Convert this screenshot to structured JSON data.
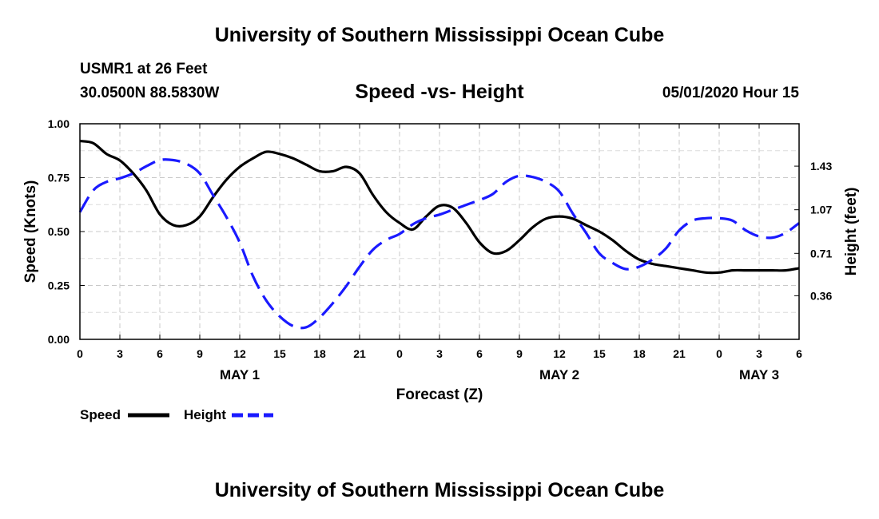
{
  "header": {
    "title": "University of Southern Mississippi Ocean Cube",
    "station": "USMR1 at 26 Feet",
    "coords": "30.0500N 88.5830W",
    "subtitle": "Speed -vs- Height",
    "timestamp": "05/01/2020 Hour 15"
  },
  "footer": {
    "title": "University of Southern Mississippi Ocean Cube"
  },
  "chart_data": {
    "type": "line",
    "title": "Speed -vs- Height",
    "xlabel": "Forecast (Z)",
    "ylabel": "Speed (Knots)",
    "y2label": "Height (feet)",
    "x_range": [
      0,
      54
    ],
    "ylim": [
      0,
      1
    ],
    "y2lim": [
      0.0,
      1.78
    ],
    "x_ticks": [
      0,
      3,
      6,
      9,
      12,
      15,
      18,
      21,
      24,
      27,
      30,
      33,
      36,
      39,
      42,
      45,
      48,
      51,
      54
    ],
    "x_tick_labels": [
      "0",
      "3",
      "6",
      "9",
      "12",
      "15",
      "18",
      "21",
      "0",
      "3",
      "6",
      "9",
      "12",
      "15",
      "18",
      "21",
      "0",
      "3",
      "6"
    ],
    "day_labels": [
      {
        "x": 12,
        "label": "MAY 1"
      },
      {
        "x": 36,
        "label": "MAY 2"
      },
      {
        "x": 51,
        "label": "MAY 3"
      }
    ],
    "y_ticks": [
      0,
      0.25,
      0.5,
      0.75,
      1.0
    ],
    "y_tick_labels": [
      "0.00",
      "0.25",
      "0.50",
      "0.75",
      "1.00"
    ],
    "y2_ticks": [
      0.36,
      0.71,
      1.07,
      1.43
    ],
    "y2_tick_labels": [
      "0.36",
      "0.71",
      "1.07",
      "1.43"
    ],
    "grid": true,
    "legend_position": "bottom-left",
    "series": [
      {
        "name": "Speed",
        "axis": "left",
        "color": "#000000",
        "style": "solid",
        "x": [
          0,
          1,
          2,
          3,
          4,
          5,
          6,
          7,
          8,
          9,
          10,
          11,
          12,
          13,
          14,
          15,
          16,
          17,
          18,
          19,
          20,
          21,
          22,
          23,
          24,
          25,
          26,
          27,
          28,
          29,
          30,
          31,
          32,
          33,
          34,
          35,
          36,
          37,
          38,
          39,
          40,
          41,
          42,
          43,
          44,
          45,
          46,
          47,
          48,
          49,
          50,
          51,
          52,
          53,
          54
        ],
        "y": [
          0.92,
          0.91,
          0.86,
          0.83,
          0.77,
          0.69,
          0.58,
          0.53,
          0.53,
          0.57,
          0.66,
          0.74,
          0.8,
          0.84,
          0.87,
          0.86,
          0.84,
          0.81,
          0.78,
          0.78,
          0.8,
          0.77,
          0.67,
          0.59,
          0.54,
          0.51,
          0.57,
          0.62,
          0.61,
          0.54,
          0.45,
          0.4,
          0.41,
          0.46,
          0.52,
          0.56,
          0.57,
          0.56,
          0.53,
          0.5,
          0.46,
          0.41,
          0.37,
          0.35,
          0.34,
          0.33,
          0.32,
          0.31,
          0.31,
          0.32,
          0.32,
          0.32,
          0.32,
          0.32,
          0.33
        ]
      },
      {
        "name": "Height",
        "axis": "right",
        "color": "#1a1aff",
        "style": "dashed",
        "x": [
          0,
          1,
          2,
          3,
          4,
          5,
          6,
          7,
          8,
          9,
          10,
          11,
          12,
          13,
          14,
          15,
          16,
          17,
          18,
          19,
          20,
          21,
          22,
          23,
          24,
          25,
          26,
          27,
          28,
          29,
          30,
          31,
          32,
          33,
          34,
          35,
          36,
          37,
          38,
          39,
          40,
          41,
          42,
          43,
          44,
          45,
          46,
          47,
          48,
          49,
          50,
          51,
          52,
          53,
          54
        ],
        "y": [
          1.05,
          1.23,
          1.3,
          1.33,
          1.37,
          1.43,
          1.48,
          1.48,
          1.45,
          1.37,
          1.19,
          1.01,
          0.8,
          0.52,
          0.32,
          0.19,
          0.11,
          0.1,
          0.18,
          0.3,
          0.44,
          0.6,
          0.74,
          0.82,
          0.87,
          0.95,
          1.0,
          1.03,
          1.07,
          1.11,
          1.15,
          1.2,
          1.3,
          1.35,
          1.34,
          1.3,
          1.22,
          1.04,
          0.88,
          0.71,
          0.63,
          0.58,
          0.6,
          0.66,
          0.75,
          0.9,
          0.98,
          1.0,
          1.0,
          0.98,
          0.9,
          0.85,
          0.84,
          0.88,
          0.96
        ]
      }
    ]
  }
}
